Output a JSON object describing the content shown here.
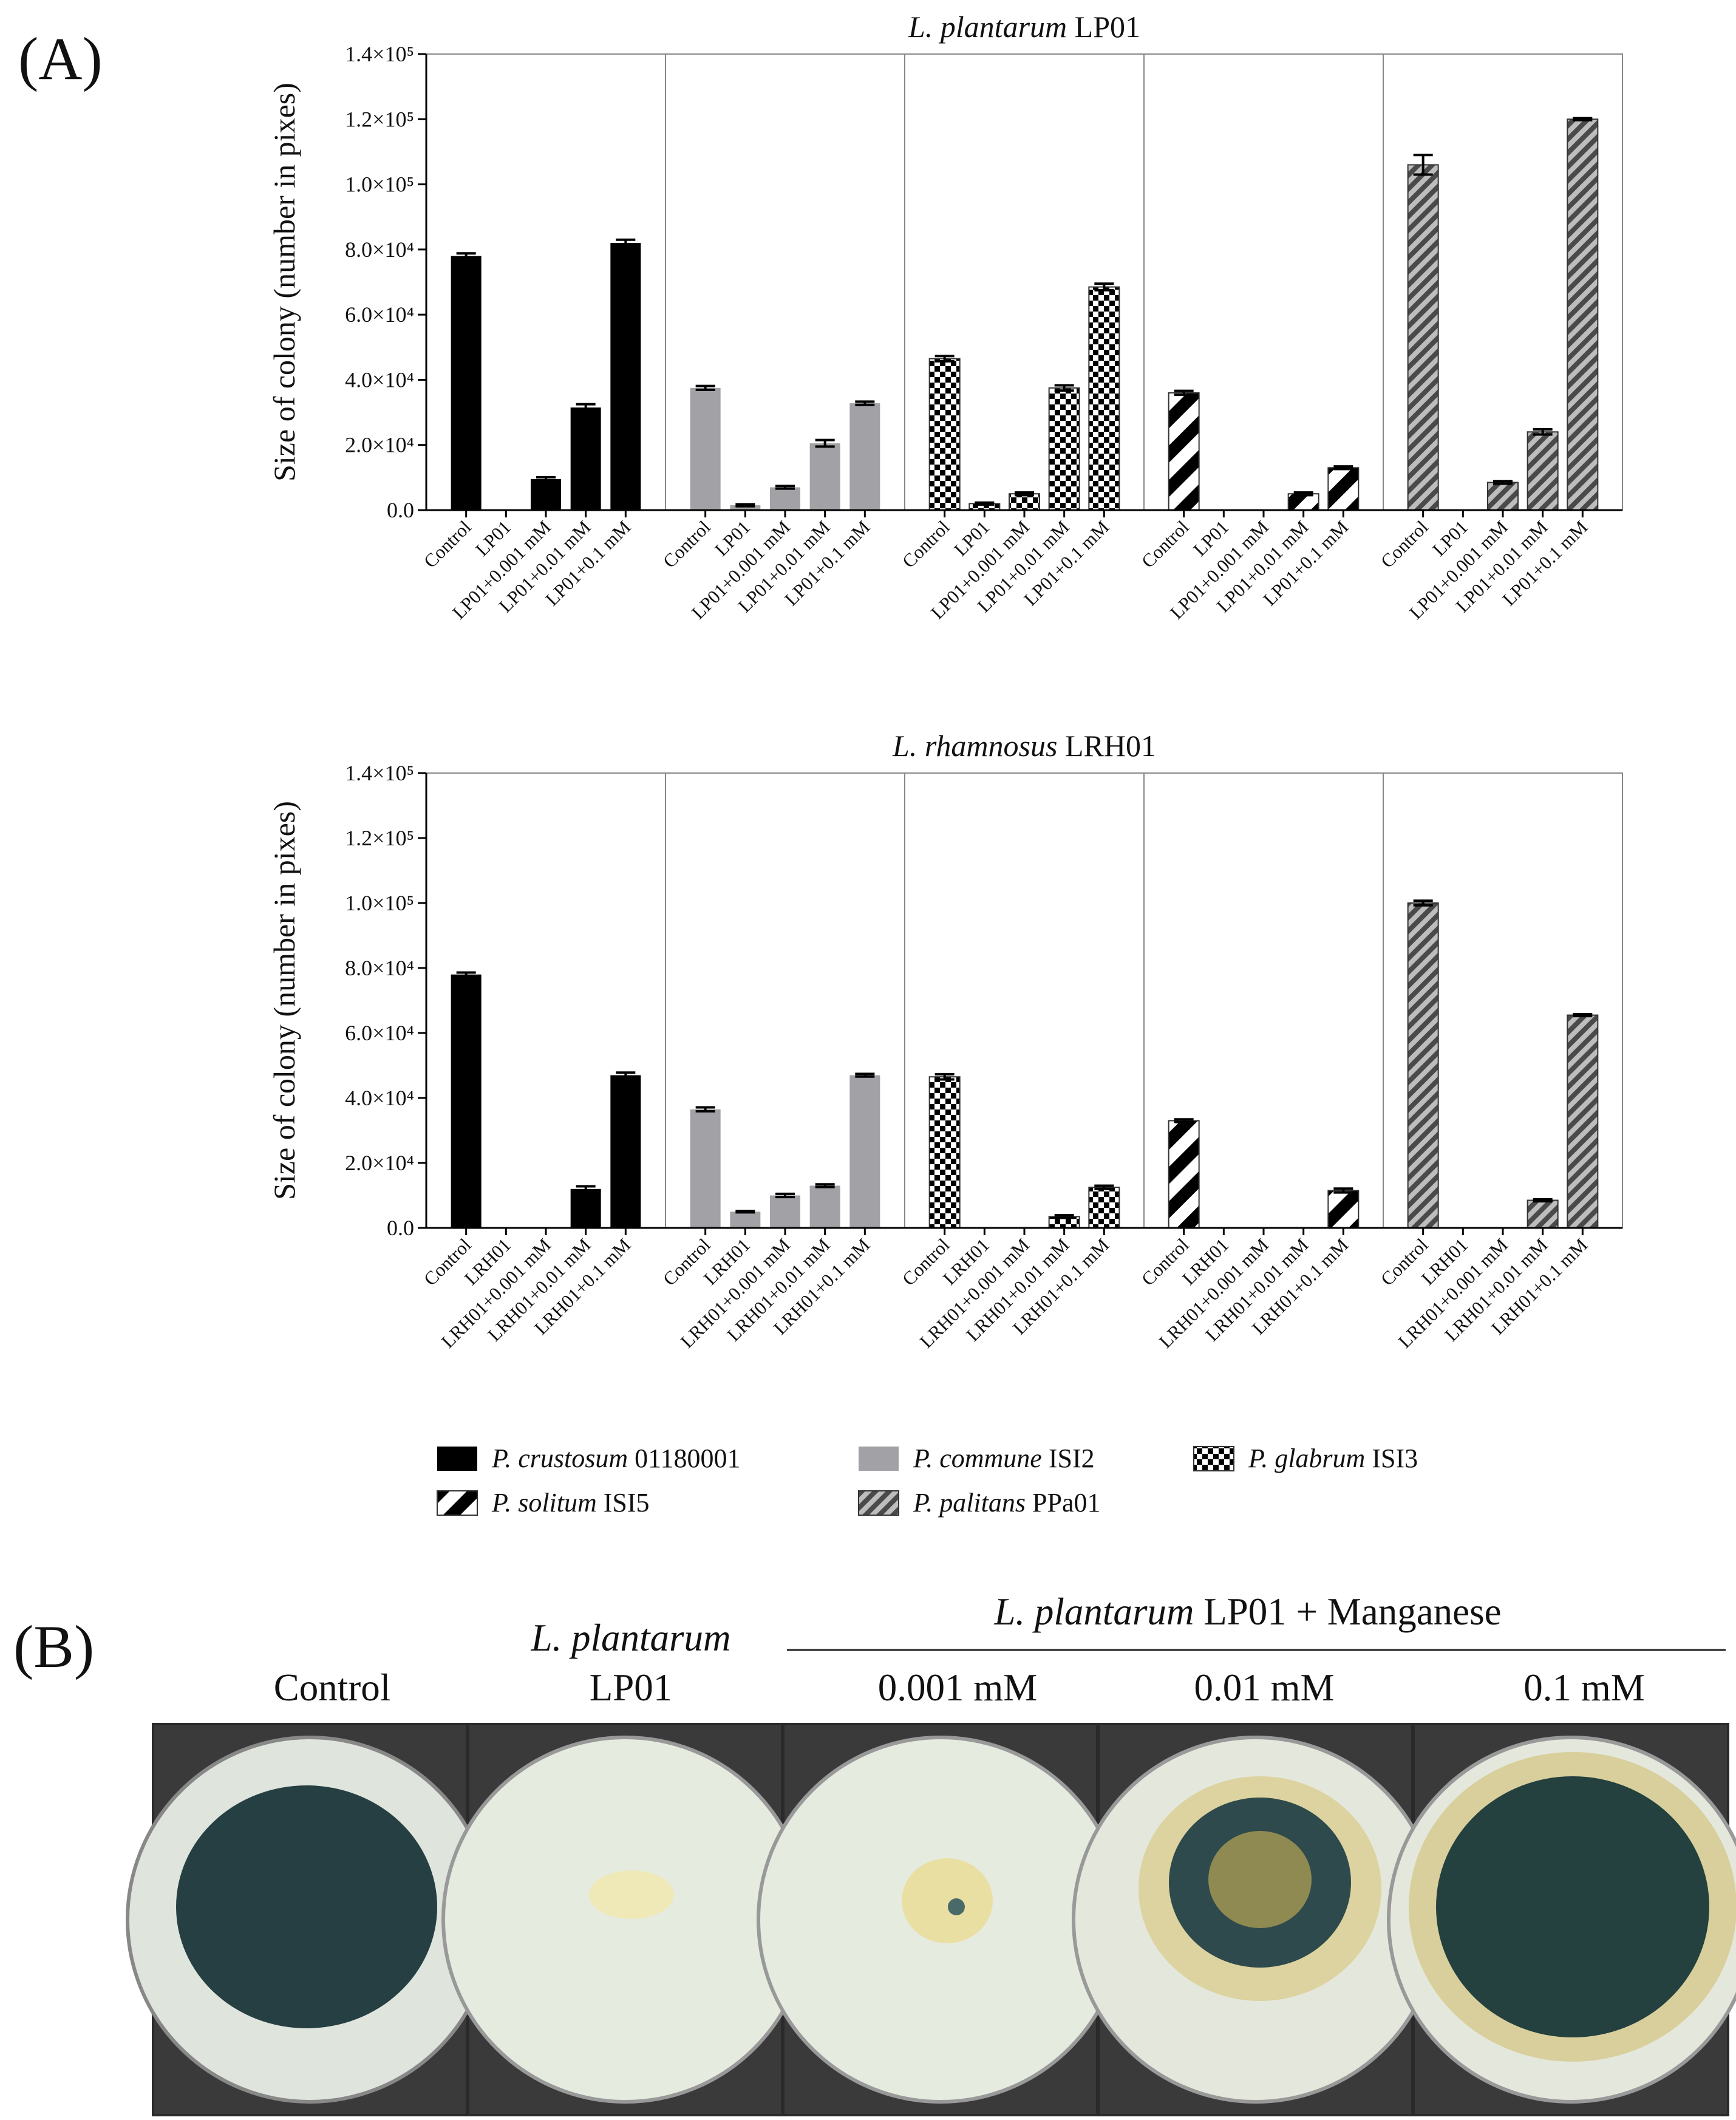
{
  "panel_a": {
    "label": "(A)"
  },
  "chart_data": [
    {
      "type": "bar",
      "title": "L. plantarum LP01",
      "ylabel": "Size of  colony (number in pixes)",
      "categories": [
        "Control",
        "LP01",
        "LP01+0.001 mM",
        "LP01+0.01 mM",
        "LP01+0.1 mM"
      ],
      "ylim": [
        0,
        140000
      ],
      "yticks": [
        {
          "value": 0,
          "label": "0.0"
        },
        {
          "value": 20000,
          "label": "2.0×10⁴"
        },
        {
          "value": 40000,
          "label": "4.0×10⁴"
        },
        {
          "value": 60000,
          "label": "6.0×10⁴"
        },
        {
          "value": 80000,
          "label": "8.0×10⁴"
        },
        {
          "value": 100000,
          "label": "1.0×10⁵"
        },
        {
          "value": 120000,
          "label": "1.2×10⁵"
        },
        {
          "value": 140000,
          "label": "1.4×10⁵"
        }
      ],
      "series": [
        {
          "name": "P. crustosum 01180001",
          "color": "#000000",
          "values": [
            78000,
            0,
            9500,
            31500,
            82000
          ],
          "errors": [
            800,
            0,
            600,
            1000,
            1000
          ]
        },
        {
          "name": "P. commune ISI2",
          "color": "#a2a2a6",
          "values": [
            37500,
            1500,
            7000,
            20500,
            32800
          ],
          "errors": [
            600,
            300,
            400,
            1000,
            500
          ]
        },
        {
          "name": "P. glabrum ISI3",
          "color": "#000000",
          "pattern": "checker",
          "values": [
            46500,
            2000,
            5000,
            37500,
            68500
          ],
          "errors": [
            800,
            300,
            400,
            800,
            1000
          ]
        },
        {
          "name": "P. solitum ISI5",
          "color": "#000000",
          "pattern": "stripe-wide",
          "values": [
            36000,
            0,
            0,
            5000,
            13000
          ],
          "errors": [
            600,
            0,
            0,
            400,
            400
          ]
        },
        {
          "name": "P. palitans PPa01",
          "color": "#4a4a4a",
          "background": "#bdbdbd",
          "pattern": "stripe-dense",
          "values": [
            106000,
            0,
            8500,
            24000,
            120000
          ],
          "errors": [
            3000,
            0,
            400,
            800,
            300
          ]
        }
      ]
    },
    {
      "type": "bar",
      "title": "L. rhamnosus LRH01",
      "ylabel": "Size of  colony (number in pixes)",
      "categories": [
        "Control",
        "LRH01",
        "LRH01+0.001 mM",
        "LRH01+0.01 mM",
        "LRH01+0.1 mM"
      ],
      "ylim": [
        0,
        140000
      ],
      "yticks": [
        {
          "value": 0,
          "label": "0.0"
        },
        {
          "value": 20000,
          "label": "2.0×10⁴"
        },
        {
          "value": 40000,
          "label": "4.0×10⁴"
        },
        {
          "value": 60000,
          "label": "6.0×10⁴"
        },
        {
          "value": 80000,
          "label": "8.0×10⁴"
        },
        {
          "value": 100000,
          "label": "1.0×10⁵"
        },
        {
          "value": 120000,
          "label": "1.2×10⁵"
        },
        {
          "value": 140000,
          "label": "1.4×10⁵"
        }
      ],
      "series": [
        {
          "name": "P. crustosum 01180001",
          "color": "#000000",
          "values": [
            78000,
            0,
            0,
            12000,
            47000
          ],
          "errors": [
            600,
            0,
            0,
            800,
            800
          ]
        },
        {
          "name": "P. commune ISI2",
          "color": "#a2a2a6",
          "values": [
            36500,
            5000,
            10000,
            13000,
            47000
          ],
          "errors": [
            600,
            200,
            500,
            400,
            400
          ]
        },
        {
          "name": "P. glabrum ISI3",
          "color": "#000000",
          "pattern": "checker",
          "values": [
            46500,
            0,
            0,
            3500,
            12500
          ],
          "errors": [
            800,
            0,
            0,
            400,
            500
          ]
        },
        {
          "name": "P. solitum ISI5",
          "color": "#000000",
          "pattern": "stripe-wide",
          "values": [
            33000,
            0,
            0,
            0,
            11500
          ],
          "errors": [
            400,
            0,
            0,
            0,
            600
          ]
        },
        {
          "name": "P. palitans PPa01",
          "color": "#4a4a4a",
          "background": "#bdbdbd",
          "pattern": "stripe-dense",
          "values": [
            100000,
            0,
            0,
            8500,
            65500
          ],
          "errors": [
            700,
            0,
            0,
            300,
            300
          ]
        }
      ]
    }
  ],
  "panel_b": {
    "label": "(B)",
    "header": "L. plantarum LP01 + Manganese",
    "columns": [
      "Control",
      "L. plantarum LP01",
      "0.001 mM",
      "0.01 mM",
      "0.1 mM"
    ]
  }
}
